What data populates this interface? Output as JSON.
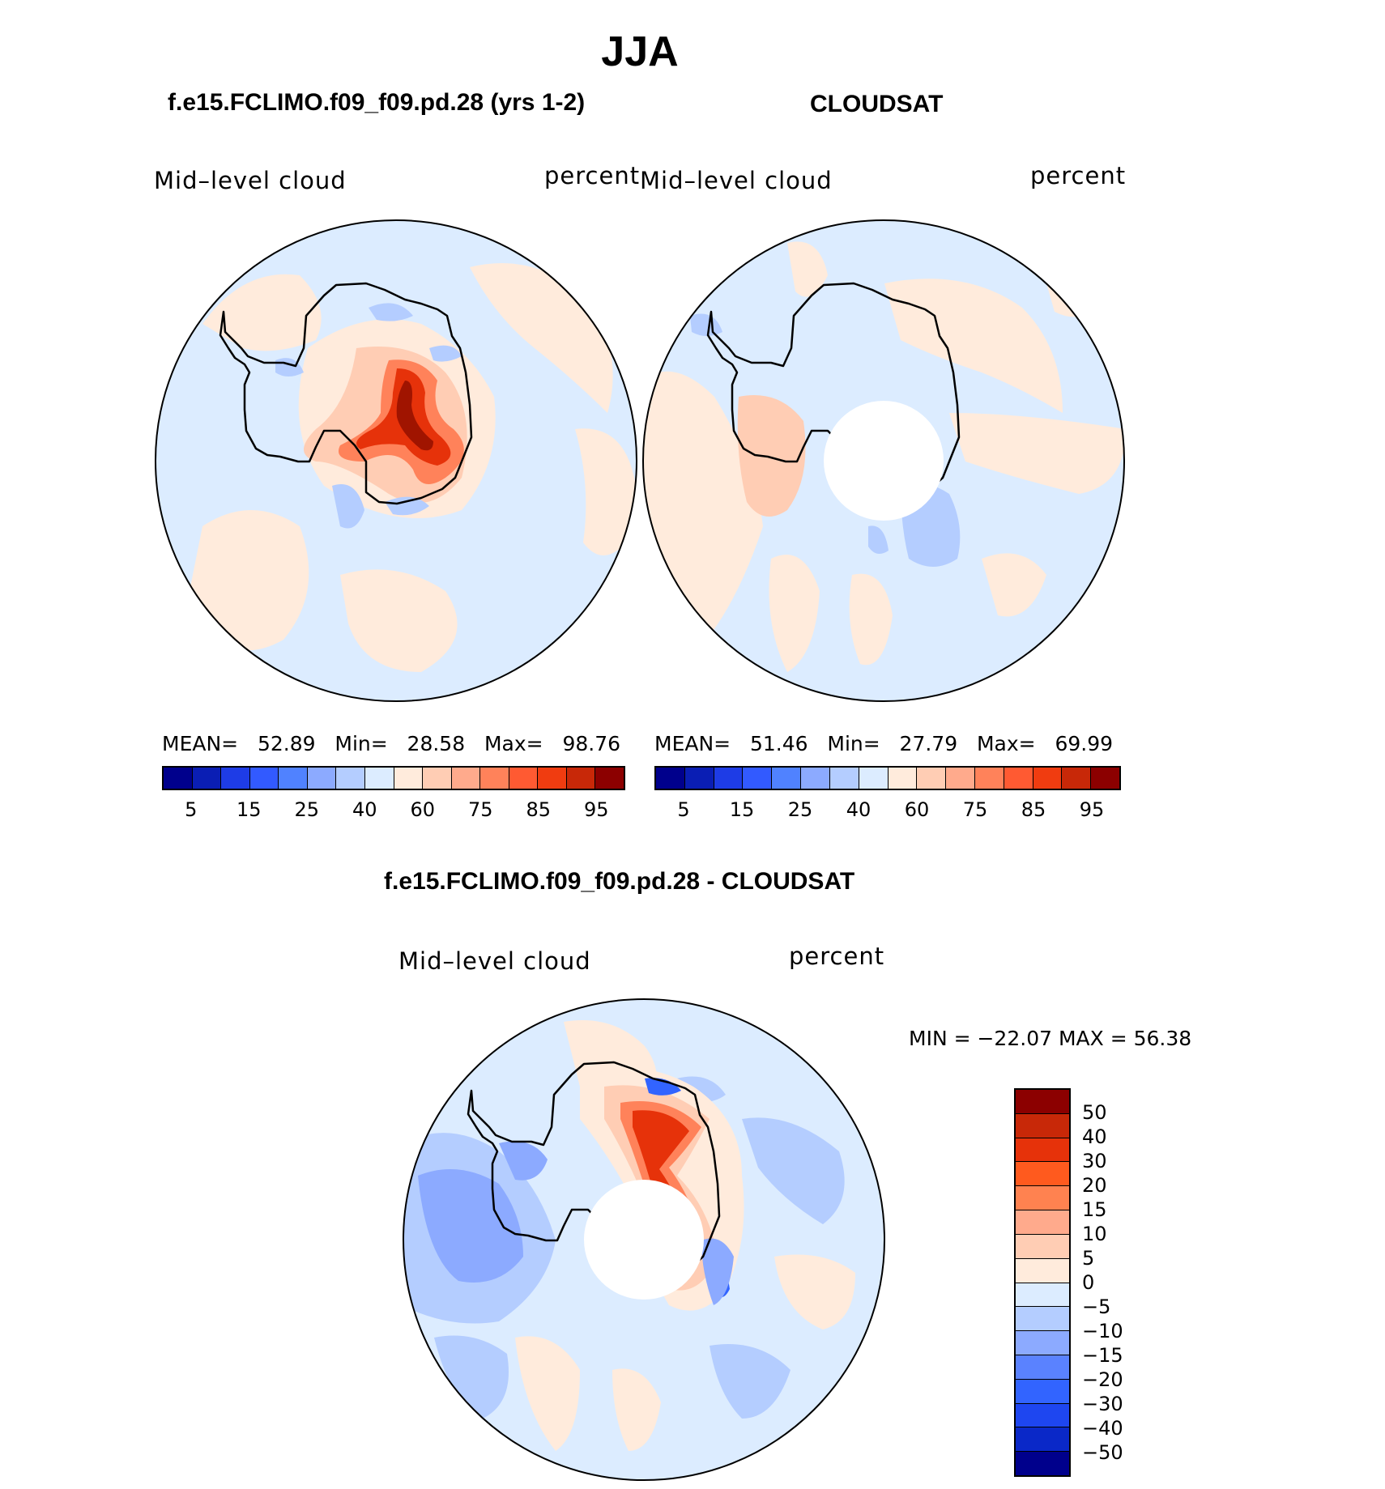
{
  "title": "JJA",
  "panels": [
    {
      "title": "f.e15.FCLIMO.f09_f09.pd.28 (yrs 1-2)",
      "variable": "Mid–level cloud",
      "units": "percent",
      "stats": {
        "mean_label": "MEAN=",
        "mean": "52.89",
        "min_label": "Min=",
        "min": "28.58",
        "max_label": "Max=",
        "max": "98.76"
      },
      "has_polar_hole": false
    },
    {
      "title": "CLOUDSAT",
      "variable": "Mid–level cloud",
      "units": "percent",
      "stats": {
        "mean_label": "MEAN=",
        "mean": "51.46",
        "min_label": "Min=",
        "min": "27.79",
        "max_label": "Max=",
        "max": "69.99"
      },
      "has_polar_hole": true
    }
  ],
  "abs_colorbar": {
    "colors": [
      "#00008c",
      "#0a1eb4",
      "#1e3ce6",
      "#325aff",
      "#5082ff",
      "#8caaff",
      "#b4cdff",
      "#dcecff",
      "#ffebdc",
      "#ffcdb4",
      "#ffaa8c",
      "#ff825a",
      "#ff5a32",
      "#f03c10",
      "#c82808",
      "#8c0000"
    ],
    "tick_labels": [
      "5",
      "15",
      "25",
      "40",
      "60",
      "75",
      "85",
      "95"
    ]
  },
  "diff_panel": {
    "title": "f.e15.FCLIMO.f09_f09.pd.28 - CLOUDSAT",
    "variable": "Mid–level cloud",
    "units": "percent",
    "minmax_text": "MIN = −22.07 MAX =   56.38",
    "has_polar_hole": true
  },
  "diff_colorbar": {
    "colors": [
      "#8c0000",
      "#c82808",
      "#e6320a",
      "#ff5a1e",
      "#ff8250",
      "#ffaa8c",
      "#ffcdb4",
      "#ffebdc",
      "#dcecff",
      "#b4cdff",
      "#8caaff",
      "#5a82ff",
      "#3264ff",
      "#1e46f0",
      "#0a28c8",
      "#00008c"
    ],
    "tick_labels": [
      "50",
      "40",
      "30",
      "20",
      "15",
      "10",
      "5",
      "0",
      "−5",
      "−10",
      "−15",
      "−20",
      "−30",
      "−40",
      "−50"
    ]
  },
  "map_colors": {
    "ocean_base": "#dcecff",
    "light_red": "#ffebdc",
    "mid_red": "#ffcdb4",
    "red": "#ff825a",
    "strong_red": "#e6320a",
    "dark_red": "#a01400",
    "light_blue": "#b4cdff",
    "blue": "#8caaff",
    "deep_blue": "#3264ff",
    "coast": "#000000"
  }
}
